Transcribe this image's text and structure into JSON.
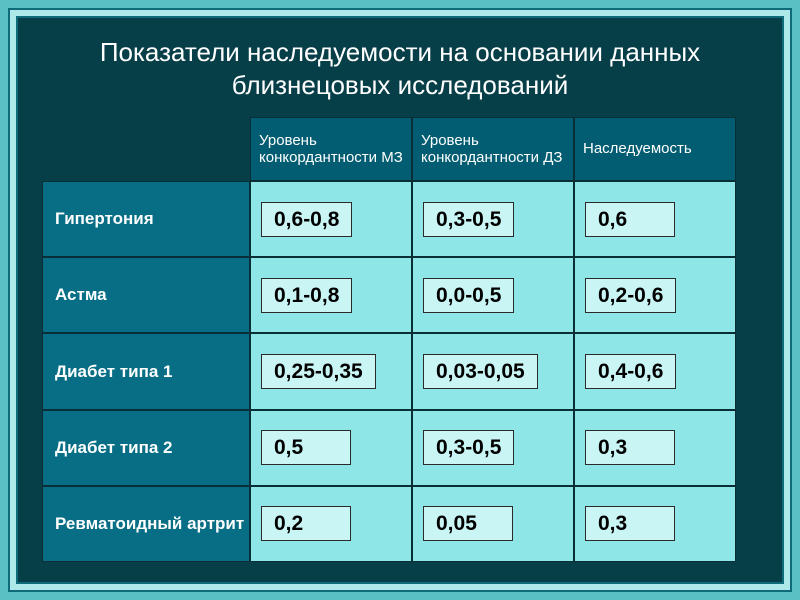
{
  "theme": {
    "slide_bg": "#5ac0c4",
    "border_light": "#aee8ea",
    "border_dark": "#0e6b7a",
    "panel_bg": "#073f49",
    "th_bg": "#035d72",
    "rowlabel_bg": "#076e85",
    "cell_outer_bg": "#8fe6e6",
    "cell_box_bg": "#c9f5f5",
    "title_color": "#ffffff",
    "label_color": "#ffffff",
    "value_color": "#000000",
    "title_fontsize": 26,
    "value_fontsize": 21,
    "label_fontsize": 17,
    "th_fontsize": 15
  },
  "title": "Показатели наследуемости на основании данных близнецовых исследований",
  "columns": {
    "c1": "Уровень конкордантности МЗ",
    "c2": "Уровень конкордантности ДЗ",
    "c3": "Наследуемость"
  },
  "rows": [
    {
      "label": "Гипертония",
      "v1": "0,6-0,8",
      "v2": "0,3-0,5",
      "v3": "0,6"
    },
    {
      "label": "Астма",
      "v1": "0,1-0,8",
      "v2": "0,0-0,5",
      "v3": "0,2-0,6"
    },
    {
      "label": "Диабет типа 1",
      "v1": "0,25-0,35",
      "v2": "0,03-0,05",
      "v3": "0,4-0,6"
    },
    {
      "label": "Диабет типа 2",
      "v1": "0,5",
      "v2": "0,3-0,5",
      "v3": "0,3"
    },
    {
      "label": "Ревматоидный артрит",
      "v1": "0,2",
      "v2": "0,05",
      "v3": "0,3"
    }
  ]
}
